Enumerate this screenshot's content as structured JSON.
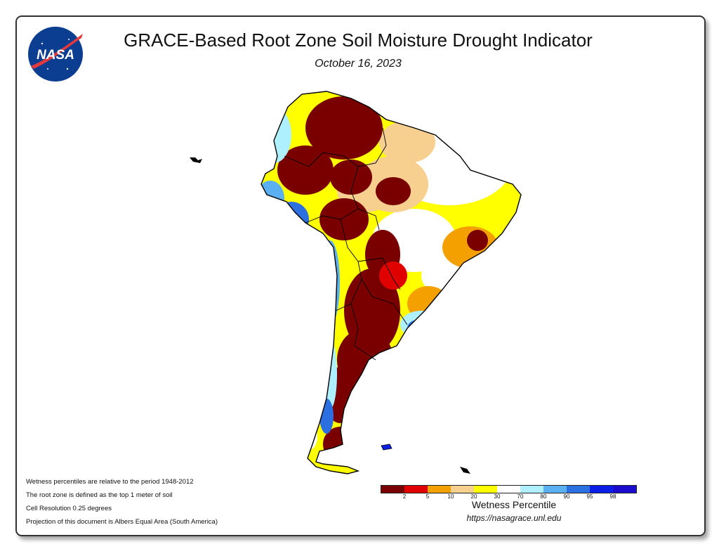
{
  "header": {
    "title": "GRACE-Based Root Zone Soil Moisture Drought Indicator",
    "date": "October 16, 2023",
    "logo_text": "NASA"
  },
  "notes": [
    "Wetness percentiles are relative to the period 1948-2012",
    "The root zone is defined as the top 1 meter of soil",
    "Cell Resolution 0.25 degrees",
    "Projection of this document is Albers Equal Area (South America)"
  ],
  "legend": {
    "title": "Wetness Percentile",
    "url": "https://nasagrace.unl.edu",
    "colors": [
      "#7a0000",
      "#e00000",
      "#f4a100",
      "#f7cf8f",
      "#ffff00",
      "#ffffff",
      "#aef0ff",
      "#5ab0f0",
      "#2b6fe0",
      "#0a1ee8",
      "#1a0ccc"
    ],
    "ticks": [
      "2",
      "5",
      "10",
      "20",
      "30",
      "70",
      "80",
      "90",
      "95",
      "98"
    ]
  },
  "map": {
    "region": "South America",
    "colors": {
      "dark_red": "#7a0000",
      "red": "#e00000",
      "orange": "#f4a100",
      "tan": "#f7cf8f",
      "yellow": "#ffff00",
      "white": "#ffffff",
      "light_blue": "#aef0ff",
      "mid_blue": "#5ab0f0",
      "blue": "#2b6fe0",
      "deep_blue": "#0a1ee8"
    }
  }
}
